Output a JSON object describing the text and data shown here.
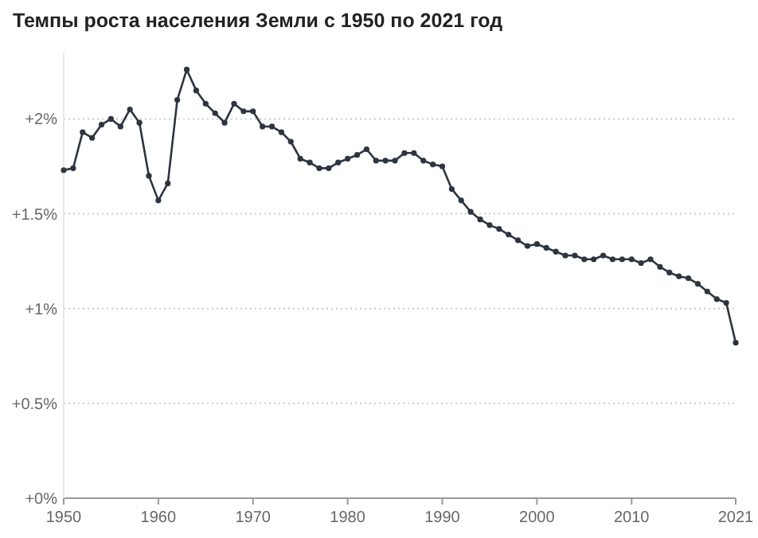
{
  "chart_data": {
    "type": "line",
    "title": "Темпы роста населения Земли с 1950 по 2021 год",
    "x": [
      1950,
      1951,
      1952,
      1953,
      1954,
      1955,
      1956,
      1957,
      1958,
      1959,
      1960,
      1961,
      1962,
      1963,
      1964,
      1965,
      1966,
      1967,
      1968,
      1969,
      1970,
      1971,
      1972,
      1973,
      1974,
      1975,
      1976,
      1977,
      1978,
      1979,
      1980,
      1981,
      1982,
      1983,
      1984,
      1985,
      1986,
      1987,
      1988,
      1989,
      1990,
      1991,
      1992,
      1993,
      1994,
      1995,
      1996,
      1997,
      1998,
      1999,
      2000,
      2001,
      2002,
      2003,
      2004,
      2005,
      2006,
      2007,
      2008,
      2009,
      2010,
      2011,
      2012,
      2013,
      2014,
      2015,
      2016,
      2017,
      2018,
      2019,
      2020,
      2021
    ],
    "series": [
      {
        "color": "#2d3540",
        "values": [
          1.73,
          1.74,
          1.93,
          1.9,
          1.97,
          2.0,
          1.96,
          2.05,
          1.98,
          1.7,
          1.57,
          1.66,
          2.1,
          2.26,
          2.15,
          2.08,
          2.03,
          1.98,
          2.08,
          2.04,
          2.04,
          1.96,
          1.96,
          1.93,
          1.88,
          1.79,
          1.77,
          1.74,
          1.74,
          1.77,
          1.79,
          1.81,
          1.84,
          1.78,
          1.78,
          1.78,
          1.82,
          1.82,
          1.78,
          1.76,
          1.75,
          1.63,
          1.57,
          1.51,
          1.47,
          1.44,
          1.42,
          1.39,
          1.36,
          1.33,
          1.34,
          1.32,
          1.3,
          1.28,
          1.28,
          1.26,
          1.26,
          1.28,
          1.26,
          1.26,
          1.26,
          1.24,
          1.26,
          1.22,
          1.19,
          1.17,
          1.16,
          1.13,
          1.09,
          1.05,
          1.03,
          0.82
        ]
      }
    ],
    "xlim": [
      1950,
      2021
    ],
    "xticks": [
      1950,
      1960,
      1970,
      1980,
      1990,
      2000,
      2010,
      2021
    ],
    "ylim": [
      0,
      2.35
    ],
    "yticks": [
      {
        "value": 0,
        "label": "+0%"
      },
      {
        "value": 0.5,
        "label": "+0.5%"
      },
      {
        "value": 1,
        "label": "+1%"
      },
      {
        "value": 1.5,
        "label": "+1.5%"
      },
      {
        "value": 2,
        "label": "+2%"
      }
    ],
    "grid": "y",
    "marker": "circle",
    "line_style": "solid"
  }
}
